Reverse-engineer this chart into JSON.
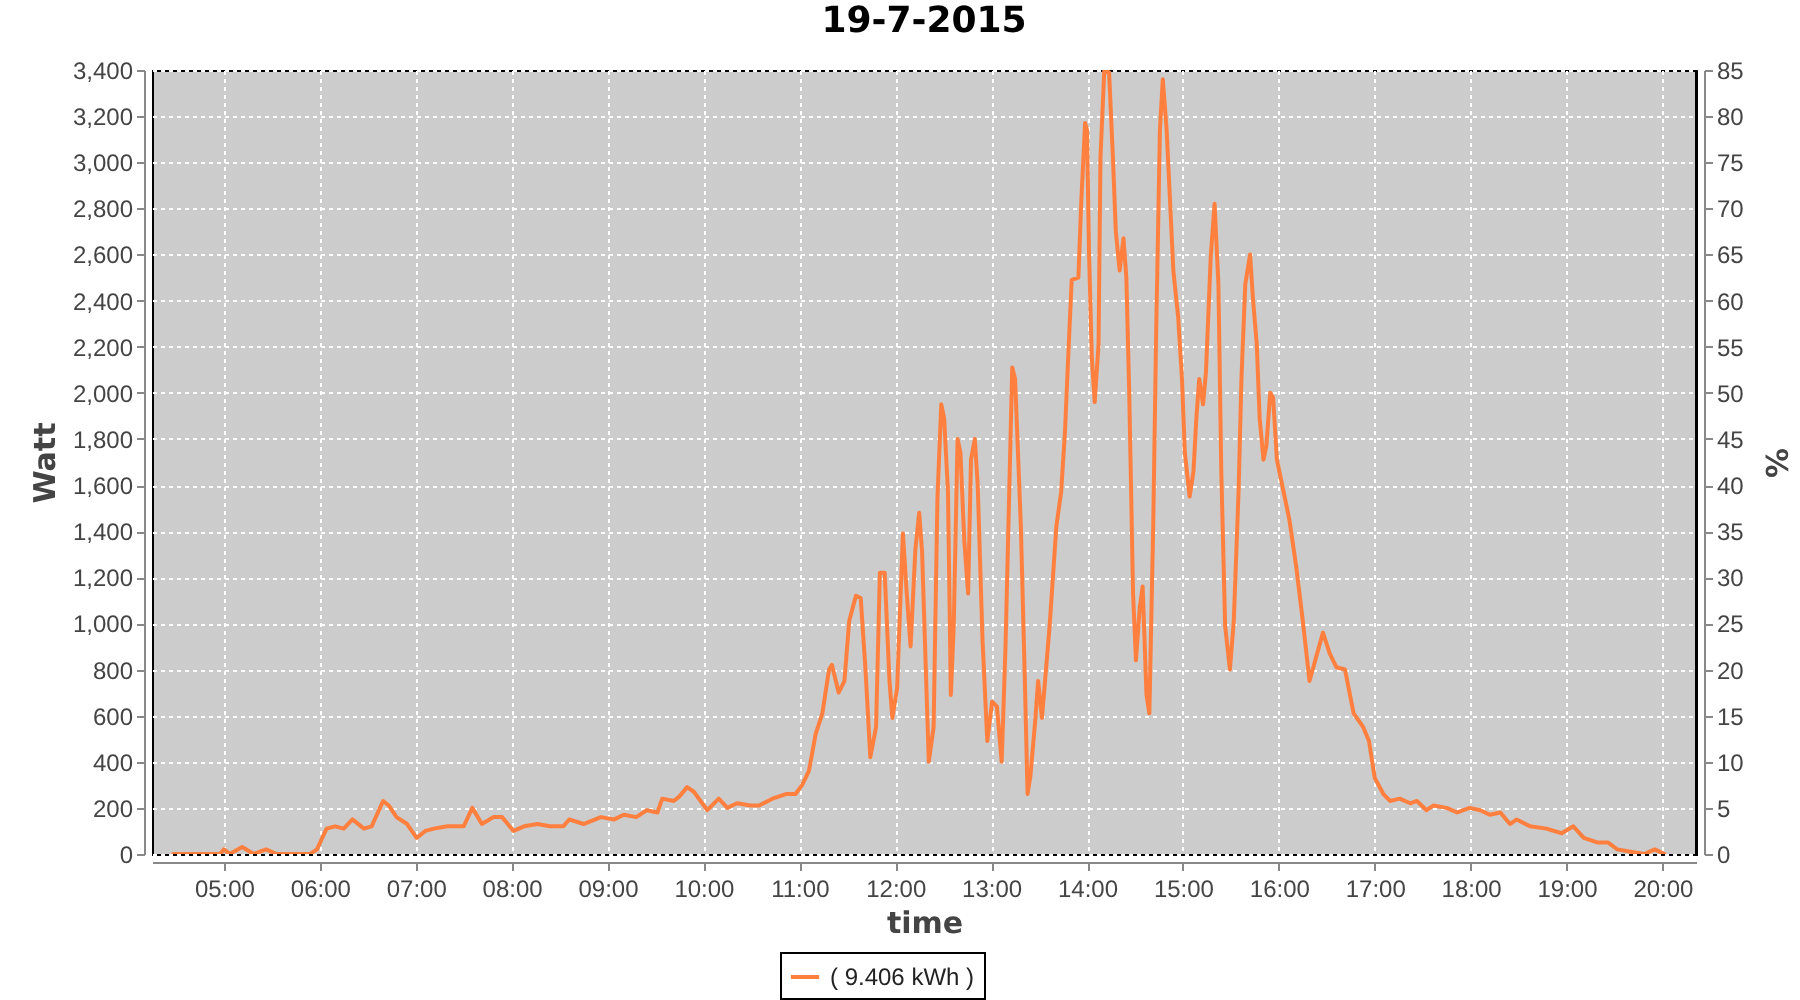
{
  "chart_data": {
    "type": "line",
    "title": "19-7-2015",
    "xlabel": "time",
    "ylabel": "Watt",
    "y2label": "%",
    "x": [
      4.47,
      4.96,
      5.0,
      5.06,
      5.19,
      5.31,
      5.44,
      5.55,
      5.9,
      5.97,
      6.07,
      6.16,
      6.25,
      6.34,
      6.46,
      6.54,
      6.66,
      6.72,
      6.8,
      6.91,
      7.01,
      7.1,
      7.19,
      7.33,
      7.47,
      7.5,
      7.59,
      7.69,
      7.81,
      7.9,
      8.02,
      8.13,
      8.27,
      8.4,
      8.54,
      8.6,
      8.75,
      8.93,
      9.07,
      9.17,
      9.3,
      9.41,
      9.52,
      9.57,
      9.69,
      9.75,
      9.83,
      9.9,
      10.04,
      10.16,
      10.25,
      10.35,
      10.49,
      10.58,
      10.72,
      10.86,
      10.96,
      11.03,
      11.1,
      11.17,
      11.24,
      11.31,
      11.34,
      11.41,
      11.47,
      11.52,
      11.59,
      11.64,
      11.69,
      11.74,
      11.8,
      11.84,
      11.89,
      11.94,
      11.97,
      12.02,
      12.08,
      12.12,
      12.16,
      12.21,
      12.25,
      12.28,
      12.35,
      12.4,
      12.44,
      12.48,
      12.51,
      12.55,
      12.58,
      12.61,
      12.65,
      12.68,
      12.72,
      12.76,
      12.79,
      12.83,
      12.86,
      12.91,
      12.96,
      13.01,
      13.06,
      13.11,
      13.15,
      13.22,
      13.25,
      13.31,
      13.35,
      13.38,
      13.41,
      13.46,
      13.49,
      13.53,
      13.61,
      13.68,
      13.73,
      13.77,
      13.8,
      13.84,
      13.91,
      13.94,
      13.98,
      14.0,
      14.02,
      14.05,
      14.08,
      14.12,
      14.14,
      14.18,
      14.23,
      14.27,
      14.3,
      14.34,
      14.38,
      14.41,
      14.44,
      14.48,
      14.51,
      14.55,
      14.58,
      14.62,
      14.65,
      14.69,
      14.72,
      14.76,
      14.79,
      14.83,
      14.86,
      14.9,
      14.95,
      14.99,
      15.02,
      15.07,
      15.11,
      15.14,
      15.17,
      15.21,
      15.24,
      15.29,
      15.33,
      15.37,
      15.4,
      15.44,
      15.49,
      15.53,
      15.58,
      15.61,
      15.65,
      15.7,
      15.73,
      15.77,
      15.8,
      15.84,
      15.87,
      15.91,
      15.94,
      15.98,
      16.05,
      16.11,
      16.18,
      16.25,
      16.32,
      16.38,
      16.46,
      16.53,
      16.6,
      16.69,
      16.78,
      16.88,
      16.94,
      17.0,
      17.09,
      17.16,
      17.26,
      17.37,
      17.44,
      17.54,
      17.61,
      17.75,
      17.86,
      17.99,
      18.1,
      18.2,
      18.31,
      18.41,
      18.48,
      18.62,
      18.79,
      18.95,
      19.07,
      19.18,
      19.32,
      19.43,
      19.53,
      19.67,
      19.81,
      19.92,
      20.02
    ],
    "series": [
      {
        "name": "( 9.406 kWh )",
        "color": "#ff7f3f",
        "values": [
          0,
          0,
          20,
          0,
          30,
          0,
          20,
          0,
          0,
          20,
          110,
          120,
          110,
          150,
          110,
          120,
          230,
          210,
          160,
          130,
          70,
          100,
          110,
          120,
          120,
          120,
          200,
          130,
          160,
          160,
          100,
          120,
          130,
          120,
          120,
          150,
          130,
          160,
          150,
          170,
          160,
          190,
          180,
          240,
          230,
          250,
          290,
          270,
          190,
          240,
          200,
          220,
          210,
          210,
          240,
          260,
          260,
          300,
          360,
          520,
          610,
          800,
          820,
          700,
          750,
          1010,
          1120,
          1110,
          800,
          420,
          550,
          1220,
          1220,
          750,
          590,
          720,
          1390,
          1130,
          900,
          1320,
          1480,
          1310,
          400,
          550,
          1540,
          1950,
          1890,
          1570,
          690,
          990,
          1800,
          1740,
          1360,
          1130,
          1710,
          1800,
          1600,
          930,
          490,
          660,
          640,
          400,
          900,
          2110,
          2060,
          1420,
          780,
          260,
          340,
          580,
          750,
          590,
          990,
          1420,
          1570,
          1830,
          2120,
          2490,
          2500,
          2830,
          3170,
          3140,
          2620,
          2150,
          1960,
          2210,
          3020,
          3400,
          3390,
          3020,
          2700,
          2530,
          2670,
          2500,
          2000,
          1130,
          840,
          1070,
          1160,
          690,
          610,
          1420,
          2240,
          3140,
          3360,
          3140,
          2880,
          2530,
          2330,
          2060,
          1740,
          1550,
          1660,
          1890,
          2060,
          1950,
          2090,
          2590,
          2820,
          2470,
          1660,
          990,
          800,
          1010,
          1570,
          2060,
          2470,
          2600,
          2410,
          2210,
          1890,
          1710,
          1770,
          2000,
          1980,
          1710,
          1570,
          1450,
          1250,
          1010,
          750,
          840,
          960,
          870,
          810,
          800,
          610,
          550,
          490,
          330,
          260,
          230,
          240,
          220,
          230,
          190,
          210,
          200,
          180,
          200,
          190,
          170,
          180,
          130,
          150,
          120,
          110,
          90,
          120,
          70,
          50,
          50,
          20,
          10,
          0,
          20,
          0
        ]
      }
    ],
    "xlim": [
      4.25,
      20.35
    ],
    "xticks": [
      {
        "value": 5,
        "label": "05:00"
      },
      {
        "value": 6,
        "label": "06:00"
      },
      {
        "value": 7,
        "label": "07:00"
      },
      {
        "value": 8,
        "label": "08:00"
      },
      {
        "value": 9,
        "label": "09:00"
      },
      {
        "value": 10,
        "label": "10:00"
      },
      {
        "value": 11,
        "label": "11:00"
      },
      {
        "value": 12,
        "label": "12:00"
      },
      {
        "value": 13,
        "label": "13:00"
      },
      {
        "value": 14,
        "label": "14:00"
      },
      {
        "value": 15,
        "label": "15:00"
      },
      {
        "value": 16,
        "label": "16:00"
      },
      {
        "value": 17,
        "label": "17:00"
      },
      {
        "value": 18,
        "label": "18:00"
      },
      {
        "value": 19,
        "label": "19:00"
      },
      {
        "value": 20,
        "label": "20:00"
      }
    ],
    "ylim": [
      0,
      3400
    ],
    "yticks": [
      0,
      200,
      400,
      600,
      800,
      {
        "value": 1000,
        "label": "1,000"
      },
      {
        "value": 1200,
        "label": "1,200"
      },
      {
        "value": 1400,
        "label": "1,400"
      },
      {
        "value": 1600,
        "label": "1,600"
      },
      {
        "value": 1800,
        "label": "1,800"
      },
      {
        "value": 2000,
        "label": "2,000"
      },
      {
        "value": 2200,
        "label": "2,200"
      },
      {
        "value": 2400,
        "label": "2,400"
      },
      {
        "value": 2600,
        "label": "2,600"
      },
      {
        "value": 2800,
        "label": "2,800"
      },
      {
        "value": 3000,
        "label": "3,000"
      },
      {
        "value": 3200,
        "label": "3,200"
      },
      {
        "value": 3400,
        "label": "3,400"
      }
    ],
    "y2lim": [
      0,
      85
    ],
    "y2ticks": [
      0,
      5,
      10,
      15,
      20,
      25,
      30,
      35,
      40,
      45,
      50,
      55,
      60,
      65,
      70,
      75,
      80,
      85
    ],
    "grid": true,
    "legend": "bottom",
    "line_style": "solid"
  }
}
